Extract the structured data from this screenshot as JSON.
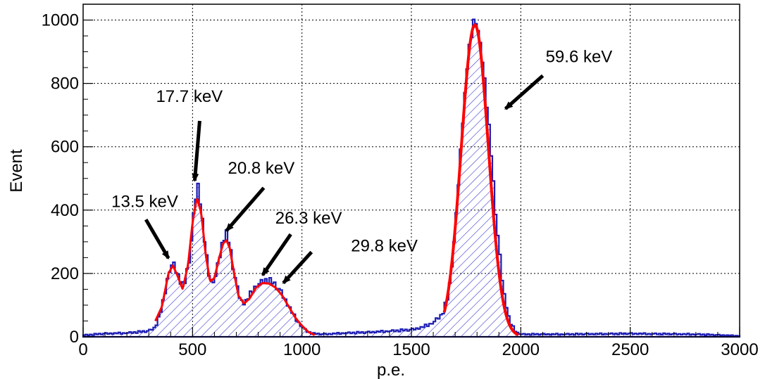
{
  "chart_data": {
    "type": "histogram",
    "title": "",
    "xlabel": "p.e.",
    "ylabel": "Event",
    "xlim": [
      0,
      3000
    ],
    "ylim": [
      0,
      1050
    ],
    "x_ticks": [
      0,
      500,
      1000,
      1500,
      2000,
      2500,
      3000
    ],
    "y_ticks": [
      0,
      200,
      400,
      600,
      800,
      1000
    ],
    "grid": true,
    "bin_width": 10,
    "colors": {
      "histogram": "#1c1cb4",
      "hatch": "#3a3ad0",
      "fit": "#ff0000"
    },
    "histogram_knots": [
      [
        0,
        5
      ],
      [
        100,
        10
      ],
      [
        200,
        12
      ],
      [
        300,
        18
      ],
      [
        330,
        30
      ],
      [
        360,
        90
      ],
      [
        390,
        200
      ],
      [
        410,
        235
      ],
      [
        430,
        200
      ],
      [
        460,
        155
      ],
      [
        490,
        260
      ],
      [
        510,
        420
      ],
      [
        525,
        480
      ],
      [
        540,
        400
      ],
      [
        560,
        270
      ],
      [
        580,
        180
      ],
      [
        600,
        175
      ],
      [
        620,
        240
      ],
      [
        640,
        310
      ],
      [
        655,
        325
      ],
      [
        670,
        290
      ],
      [
        690,
        200
      ],
      [
        710,
        135
      ],
      [
        730,
        105
      ],
      [
        750,
        115
      ],
      [
        780,
        155
      ],
      [
        810,
        170
      ],
      [
        840,
        180
      ],
      [
        870,
        170
      ],
      [
        900,
        145
      ],
      [
        930,
        110
      ],
      [
        960,
        70
      ],
      [
        990,
        40
      ],
      [
        1020,
        18
      ],
      [
        1050,
        10
      ],
      [
        1100,
        8
      ],
      [
        1200,
        12
      ],
      [
        1300,
        14
      ],
      [
        1400,
        18
      ],
      [
        1500,
        22
      ],
      [
        1550,
        30
      ],
      [
        1600,
        45
      ],
      [
        1640,
        70
      ],
      [
        1670,
        130
      ],
      [
        1700,
        330
      ],
      [
        1730,
        640
      ],
      [
        1760,
        890
      ],
      [
        1785,
        1000
      ],
      [
        1800,
        990
      ],
      [
        1830,
        850
      ],
      [
        1860,
        620
      ],
      [
        1890,
        350
      ],
      [
        1920,
        150
      ],
      [
        1950,
        45
      ],
      [
        1980,
        15
      ],
      [
        2000,
        8
      ],
      [
        2200,
        8
      ],
      [
        2500,
        10
      ],
      [
        2800,
        8
      ],
      [
        3000,
        3
      ]
    ],
    "fit_knots": [
      [
        330,
        50
      ],
      [
        360,
        95
      ],
      [
        390,
        200
      ],
      [
        410,
        225
      ],
      [
        430,
        195
      ],
      [
        455,
        150
      ],
      [
        480,
        230
      ],
      [
        500,
        360
      ],
      [
        520,
        440
      ],
      [
        540,
        390
      ],
      [
        560,
        260
      ],
      [
        580,
        175
      ],
      [
        600,
        185
      ],
      [
        620,
        245
      ],
      [
        640,
        295
      ],
      [
        655,
        305
      ],
      [
        670,
        280
      ],
      [
        690,
        200
      ],
      [
        710,
        130
      ],
      [
        735,
        105
      ],
      [
        760,
        120
      ],
      [
        790,
        155
      ],
      [
        820,
        170
      ],
      [
        850,
        168
      ],
      [
        880,
        155
      ],
      [
        910,
        130
      ],
      [
        940,
        95
      ],
      [
        970,
        60
      ],
      [
        1000,
        35
      ],
      [
        1030,
        15
      ],
      [
        1060,
        5
      ]
    ],
    "fit_peak": {
      "mean": 1790,
      "sigma": 62,
      "amplitude": 985,
      "x_min": 1650,
      "x_max": 1990
    },
    "annotations": [
      {
        "text": "13.5 keV",
        "x": 390,
        "y": 248
      },
      {
        "text": "17.7 keV",
        "x": 510,
        "y": 493
      },
      {
        "text": "20.8 keV",
        "x": 655,
        "y": 335
      },
      {
        "text": "26.3 keV",
        "x": 820,
        "y": 195
      },
      {
        "text": "29.8 keV",
        "x": 915,
        "y": 170
      },
      {
        "text": "59.6 keV",
        "x": 1930,
        "y": 720
      }
    ]
  }
}
